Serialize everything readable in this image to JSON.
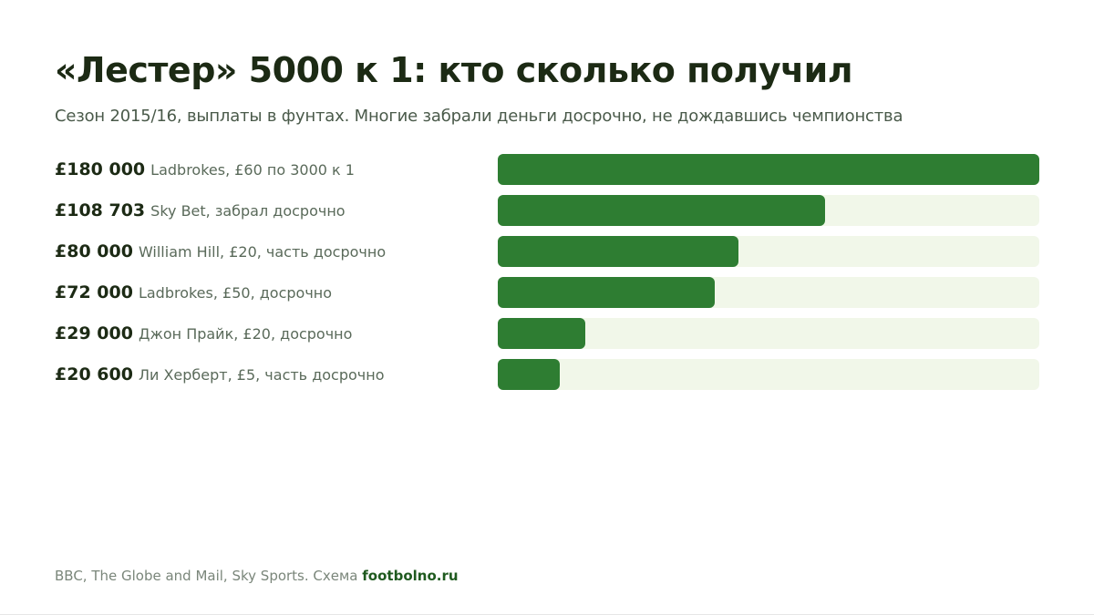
{
  "header": {
    "title": "«Лестер» 5000 к 1: кто сколько получил",
    "subtitle": "Сезон 2015/16, выплаты в фунтах. Многие забрали деньги досрочно, не дождавшись чемпионства"
  },
  "chart_data": {
    "type": "bar",
    "orientation": "horizontal",
    "categories": [
      "Ladbrokes, £60 по 3000 к 1",
      "Sky Bet, забрал досрочно",
      "William Hill, £20, часть досрочно",
      "Ladbrokes, £50, досрочно",
      "Джон Прайк, £20, досрочно",
      "Ли Херберт, £5, часть досрочно"
    ],
    "value_labels": [
      "£180 000",
      "£108 703",
      "£80 000",
      "£72 000",
      "£29 000",
      "£20 600"
    ],
    "values": [
      180000,
      108703,
      80000,
      72000,
      29000,
      20600
    ],
    "xlim": [
      0,
      180000
    ],
    "colors": {
      "bar": "#2e7d32",
      "track": "#f1f7e9"
    },
    "grid": false,
    "legend": "none"
  },
  "footer": {
    "sources": "BBC, The Globe and Mail, Sky Sports. Схема",
    "brand": "footbolno.ru"
  }
}
